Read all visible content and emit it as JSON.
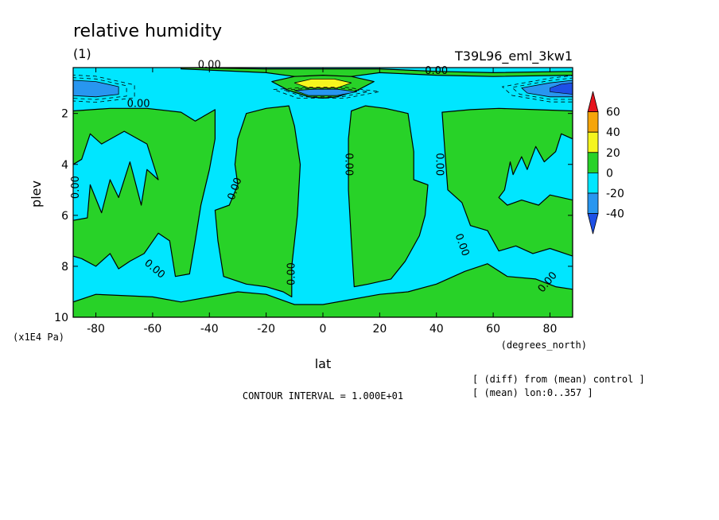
{
  "chart_data": {
    "type": "contour",
    "title": "relative humidity",
    "subtitle": "(1)",
    "run_label": "T39L96_eml_3kw1",
    "xlabel": "lat",
    "x_units": "(degrees_north)",
    "ylabel": "plev",
    "y_units": "(x1E4 Pa)",
    "xlim": [
      -88,
      88
    ],
    "ylim": [
      10,
      0.2
    ],
    "x_ticks": [
      -80,
      -60,
      -40,
      -20,
      0,
      20,
      40,
      60,
      80
    ],
    "y_ticks": [
      2,
      4,
      6,
      8,
      10
    ],
    "contour_interval_text": "CONTOUR INTERVAL = 1.000E+01",
    "notes": [
      "[ (diff) from (mean) control ]",
      "[ (mean) lon:0..357 ]"
    ],
    "zero_contour_label": "0.00",
    "colorbar": {
      "ticks": [
        60,
        40,
        20,
        0,
        -20,
        -40
      ],
      "bins": [
        {
          "from": 60,
          "to": null,
          "color": "#e6141e"
        },
        {
          "from": 40,
          "to": 60,
          "color": "#f5a50a"
        },
        {
          "from": 20,
          "to": 40,
          "color": "#f5f51e"
        },
        {
          "from": 0,
          "to": 20,
          "color": "#28d228"
        },
        {
          "from": -20,
          "to": 0,
          "color": "#00e6ff"
        },
        {
          "from": -40,
          "to": -20,
          "color": "#2896f0"
        },
        {
          "from": null,
          "to": -40,
          "color": "#1e50e6"
        }
      ]
    },
    "fields": {
      "positive": [
        {
          "name": "upper-band",
          "points": [
            [
              -50,
              0.25
            ],
            [
              -20,
              0.4
            ],
            [
              -10,
              0.55
            ],
            [
              0,
              0.6
            ],
            [
              10,
              0.55
            ],
            [
              20,
              0.4
            ],
            [
              40,
              0.5
            ],
            [
              60,
              0.55
            ],
            [
              88,
              0.5
            ],
            [
              88,
              0.35
            ],
            [
              60,
              0.4
            ],
            [
              40,
              0.35
            ],
            [
              20,
              0.25
            ],
            [
              -20,
              0.25
            ],
            [
              -50,
              0.2
            ]
          ]
        },
        {
          "name": "equatorial-max",
          "points": [
            [
              -18,
              0.75
            ],
            [
              -10,
              0.55
            ],
            [
              0,
              0.5
            ],
            [
              10,
              0.55
            ],
            [
              18,
              0.75
            ],
            [
              12,
              1.1
            ],
            [
              5,
              1.35
            ],
            [
              0,
              1.4
            ],
            [
              -5,
              1.35
            ],
            [
              -12,
              1.1
            ]
          ]
        },
        {
          "name": "sh-tropics",
          "points": [
            [
              -27,
              2.0
            ],
            [
              -20,
              1.8
            ],
            [
              -12,
              1.7
            ],
            [
              -10,
              2.5
            ],
            [
              -8,
              4.0
            ],
            [
              -9,
              6.0
            ],
            [
              -11,
              8.0
            ],
            [
              -11,
              9.2
            ],
            [
              -14,
              9.0
            ],
            [
              -20,
              8.8
            ],
            [
              -27,
              8.7
            ],
            [
              -35,
              8.4
            ],
            [
              -37,
              7.0
            ],
            [
              -38,
              5.8
            ],
            [
              -33,
              5.6
            ],
            [
              -30,
              4.8
            ],
            [
              -31,
              4.0
            ],
            [
              -30,
              3.0
            ]
          ]
        },
        {
          "name": "nh-tropics",
          "points": [
            [
              10,
              1.9
            ],
            [
              15,
              1.7
            ],
            [
              22,
              1.8
            ],
            [
              30,
              2.0
            ],
            [
              32,
              3.5
            ],
            [
              32,
              4.6
            ],
            [
              37,
              4.8
            ],
            [
              36,
              6.0
            ],
            [
              34,
              6.8
            ],
            [
              29,
              7.8
            ],
            [
              24,
              8.5
            ],
            [
              16,
              8.7
            ],
            [
              11,
              8.8
            ],
            [
              10,
              7.0
            ],
            [
              9,
              5.0
            ],
            [
              9,
              3.0
            ]
          ]
        },
        {
          "name": "nh-midlat",
          "points": [
            [
              42,
              1.95
            ],
            [
              52,
              1.85
            ],
            [
              62,
              1.8
            ],
            [
              75,
              1.85
            ],
            [
              88,
              1.9
            ],
            [
              88,
              3.0
            ],
            [
              84,
              2.8
            ],
            [
              82,
              3.5
            ],
            [
              78,
              3.9
            ],
            [
              75,
              3.3
            ],
            [
              72,
              4.2
            ],
            [
              70,
              3.7
            ],
            [
              67,
              4.4
            ],
            [
              66,
              3.9
            ],
            [
              64,
              5.0
            ],
            [
              62,
              5.3
            ],
            [
              65,
              5.6
            ],
            [
              70,
              5.4
            ],
            [
              76,
              5.6
            ],
            [
              80,
              5.2
            ],
            [
              88,
              5.4
            ],
            [
              88,
              7.6
            ],
            [
              80,
              7.3
            ],
            [
              74,
              7.5
            ],
            [
              68,
              7.2
            ],
            [
              62,
              7.4
            ],
            [
              58,
              6.6
            ],
            [
              52,
              6.4
            ],
            [
              49,
              5.5
            ],
            [
              44,
              5.0
            ],
            [
              43,
              3.5
            ]
          ]
        },
        {
          "name": "sh-midlat",
          "points": [
            [
              -88,
              1.9
            ],
            [
              -75,
              1.8
            ],
            [
              -62,
              1.8
            ],
            [
              -50,
              1.95
            ],
            [
              -45,
              2.3
            ],
            [
              -38,
              1.85
            ],
            [
              -38,
              3.0
            ],
            [
              -40,
              4.2
            ],
            [
              -43,
              5.6
            ],
            [
              -45,
              7.0
            ],
            [
              -47,
              8.3
            ],
            [
              -52,
              8.4
            ],
            [
              -54,
              7.0
            ],
            [
              -58,
              6.7
            ],
            [
              -63,
              7.5
            ],
            [
              -68,
              7.8
            ],
            [
              -72,
              8.1
            ],
            [
              -75,
              7.5
            ],
            [
              -80,
              8.0
            ],
            [
              -85,
              7.7
            ],
            [
              -88,
              7.6
            ],
            [
              -88,
              6.2
            ],
            [
              -83,
              6.1
            ],
            [
              -82,
              4.8
            ],
            [
              -78,
              5.9
            ],
            [
              -75,
              4.6
            ],
            [
              -72,
              5.3
            ],
            [
              -68,
              3.9
            ],
            [
              -64,
              5.6
            ],
            [
              -62,
              4.2
            ],
            [
              -58,
              4.6
            ],
            [
              -62,
              3.2
            ],
            [
              -70,
              2.7
            ],
            [
              -78,
              3.2
            ],
            [
              -82,
              2.8
            ],
            [
              -85,
              3.8
            ],
            [
              -88,
              4.0
            ]
          ]
        },
        {
          "name": "lower-band",
          "points": [
            [
              -88,
              9.4
            ],
            [
              -80,
              9.1
            ],
            [
              -60,
              9.2
            ],
            [
              -50,
              9.4
            ],
            [
              -40,
              9.2
            ],
            [
              -30,
              9.0
            ],
            [
              -20,
              9.1
            ],
            [
              -10,
              9.5
            ],
            [
              0,
              9.5
            ],
            [
              10,
              9.3
            ],
            [
              20,
              9.1
            ],
            [
              30,
              9.0
            ],
            [
              40,
              8.7
            ],
            [
              50,
              8.2
            ],
            [
              58,
              7.9
            ],
            [
              65,
              8.4
            ],
            [
              75,
              8.5
            ],
            [
              82,
              8.8
            ],
            [
              88,
              8.9
            ],
            [
              88,
              10
            ],
            [
              -88,
              10
            ]
          ]
        }
      ],
      "neg_deep": [
        {
          "name": "sp-strat-low",
          "points": [
            [
              -88,
              0.7
            ],
            [
              -80,
              0.75
            ],
            [
              -72,
              0.95
            ],
            [
              -72,
              1.25
            ],
            [
              -80,
              1.35
            ],
            [
              -88,
              1.3
            ]
          ]
        },
        {
          "name": "np-strat-low",
          "points": [
            [
              88,
              0.7
            ],
            [
              80,
              0.8
            ],
            [
              70,
              1.0
            ],
            [
              72,
              1.2
            ],
            [
              80,
              1.35
            ],
            [
              88,
              1.35
            ]
          ]
        },
        {
          "name": "eq-low",
          "points": [
            [
              -10,
              1.1
            ],
            [
              -3,
              1.05
            ],
            [
              5,
              1.05
            ],
            [
              12,
              1.15
            ],
            [
              5,
              1.3
            ],
            [
              -5,
              1.3
            ]
          ]
        }
      ],
      "neg_core": [
        {
          "name": "np-core",
          "points": [
            [
              88,
              0.8
            ],
            [
              84,
              0.85
            ],
            [
              80,
              1.0
            ],
            [
              80,
              1.15
            ],
            [
              88,
              1.25
            ]
          ]
        }
      ],
      "high_core": [
        {
          "name": "eq-max-core",
          "points": [
            [
              -10,
              0.8
            ],
            [
              -4,
              0.65
            ],
            [
              4,
              0.65
            ],
            [
              10,
              0.8
            ],
            [
              5,
              1.0
            ],
            [
              -5,
              1.0
            ]
          ]
        }
      ]
    }
  }
}
